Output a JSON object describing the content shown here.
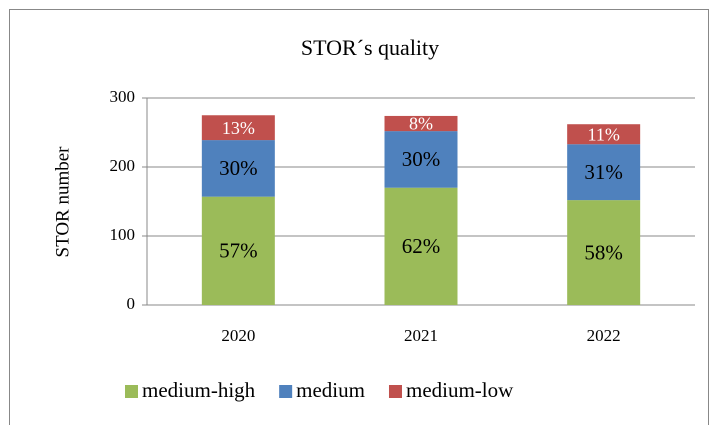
{
  "chart_data": {
    "type": "stacked_bar",
    "title": "STOR´s quality",
    "y_label": "STOR number",
    "categories": [
      "2020",
      "2021",
      "2022"
    ],
    "series": [
      {
        "name": "medium-high",
        "color": "#9bbb59",
        "values": [
          157,
          170,
          152
        ],
        "data_labels": [
          "57%",
          "62%",
          "58%"
        ]
      },
      {
        "name": "medium",
        "color": "#4f81bd",
        "values": [
          82,
          82,
          81
        ],
        "data_labels": [
          "30%",
          "30%",
          "31%"
        ]
      },
      {
        "name": "medium-low",
        "color": "#c0504d",
        "values": [
          36,
          22,
          29
        ],
        "data_labels": [
          "13%",
          "8%",
          "11%"
        ]
      }
    ],
    "ylim": [
      0,
      300
    ],
    "yticks": [
      0,
      100,
      200,
      300
    ],
    "grid": true,
    "legend": "bottom"
  }
}
